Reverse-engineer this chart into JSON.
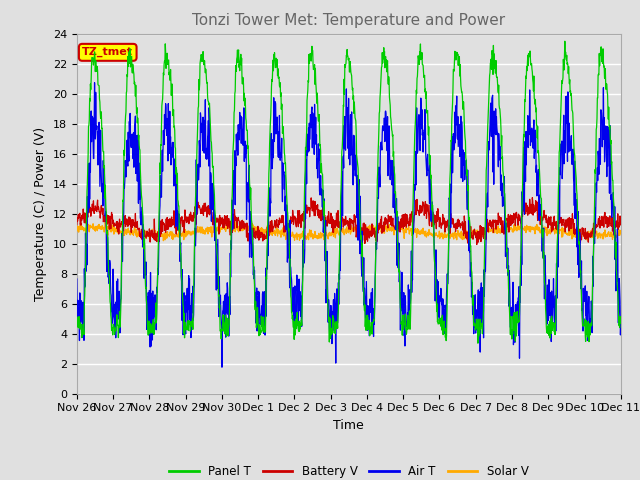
{
  "title": "Tonzi Tower Met: Temperature and Power",
  "xlabel": "Time",
  "ylabel": "Temperature (C) / Power (V)",
  "ylim": [
    0,
    24
  ],
  "yticks": [
    0,
    2,
    4,
    6,
    8,
    10,
    12,
    14,
    16,
    18,
    20,
    22,
    24
  ],
  "xtick_labels": [
    "Nov 26",
    "Nov 27",
    "Nov 28",
    "Nov 29",
    "Nov 30",
    "Dec 1",
    "Dec 2",
    "Dec 3",
    "Dec 4",
    "Dec 5",
    "Dec 6",
    "Dec 7",
    "Dec 8",
    "Dec 9",
    "Dec 10",
    "Dec 11"
  ],
  "legend_labels": [
    "Panel T",
    "Battery V",
    "Air T",
    "Solar V"
  ],
  "panel_t_color": "#00cc00",
  "battery_v_color": "#cc0000",
  "air_t_color": "#0000ee",
  "solar_v_color": "#ffaa00",
  "plot_bg_color": "#e0e0e0",
  "grid_color": "#ffffff",
  "annotation_text": "TZ_tmet",
  "annotation_bg": "#ffff00",
  "annotation_border": "#cc0000",
  "num_days": 15,
  "points_per_day": 96,
  "title_color": "#666666",
  "title_fontsize": 11,
  "tick_fontsize": 8,
  "label_fontsize": 9
}
